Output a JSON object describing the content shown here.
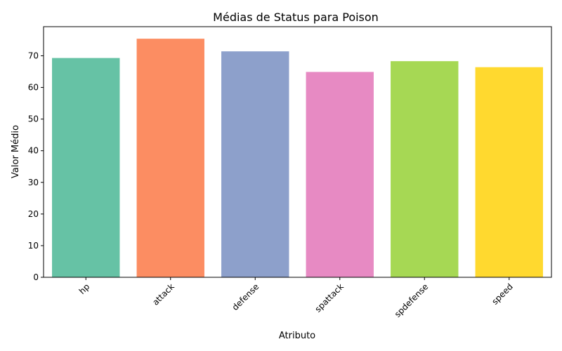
{
  "chart_data": {
    "type": "bar",
    "title": "Médias de Status para Poison",
    "xlabel": "Atributo",
    "ylabel": "Valor Médio",
    "categories": [
      "hp",
      "attack",
      "defense",
      "spattack",
      "spdefense",
      "speed"
    ],
    "values": [
      69.3,
      75.4,
      71.4,
      64.9,
      68.3,
      66.4
    ],
    "colors": [
      "#66c2a5",
      "#fc8d62",
      "#8da0cb",
      "#e78ac3",
      "#a6d854",
      "#ffd92f"
    ],
    "ylim": [
      0,
      79.2
    ],
    "yticks": [
      0,
      10,
      20,
      30,
      40,
      50,
      60,
      70
    ],
    "grid": false,
    "xtick_rotation": 45
  }
}
